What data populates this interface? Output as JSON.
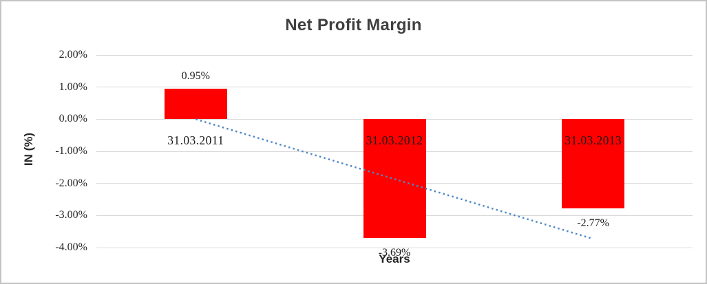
{
  "chart_data": {
    "type": "bar",
    "title": "Net Profit Margin",
    "xlabel": "Years",
    "ylabel": "IN (%)",
    "categories": [
      "31.03.2011",
      "31.03.2012",
      "31.03.2013"
    ],
    "series": [
      {
        "name": "Net Profit Margin",
        "values": [
          0.95,
          -3.69,
          -2.77
        ]
      }
    ],
    "value_labels": [
      "0.95%",
      "-3.69%",
      "-2.77%"
    ],
    "y_ticks": [
      {
        "label": "2.00%",
        "value": 2
      },
      {
        "label": "1.00%",
        "value": 1
      },
      {
        "label": "0.00%",
        "value": 0
      },
      {
        "label": "-1.00%",
        "value": -1
      },
      {
        "label": "-2.00%",
        "value": -2
      },
      {
        "label": "-3.00%",
        "value": -3
      },
      {
        "label": "-4.00%",
        "value": -4
      }
    ],
    "ylim": [
      -4,
      2
    ],
    "grid": true,
    "legend": "none",
    "trendline": {
      "style": "dotted",
      "start_value": 0.0,
      "end_value": -3.73
    },
    "colors": {
      "bar": "#ff0000",
      "trendline": "#4f87c5",
      "gridline": "#d9d9d9",
      "title_text": "#3f3f3f",
      "axis_title_text": "#262626",
      "tick_text": "#262626",
      "label_text": "#1a1a1a",
      "border": "#c3c3c3",
      "background": "#ffffff"
    }
  }
}
